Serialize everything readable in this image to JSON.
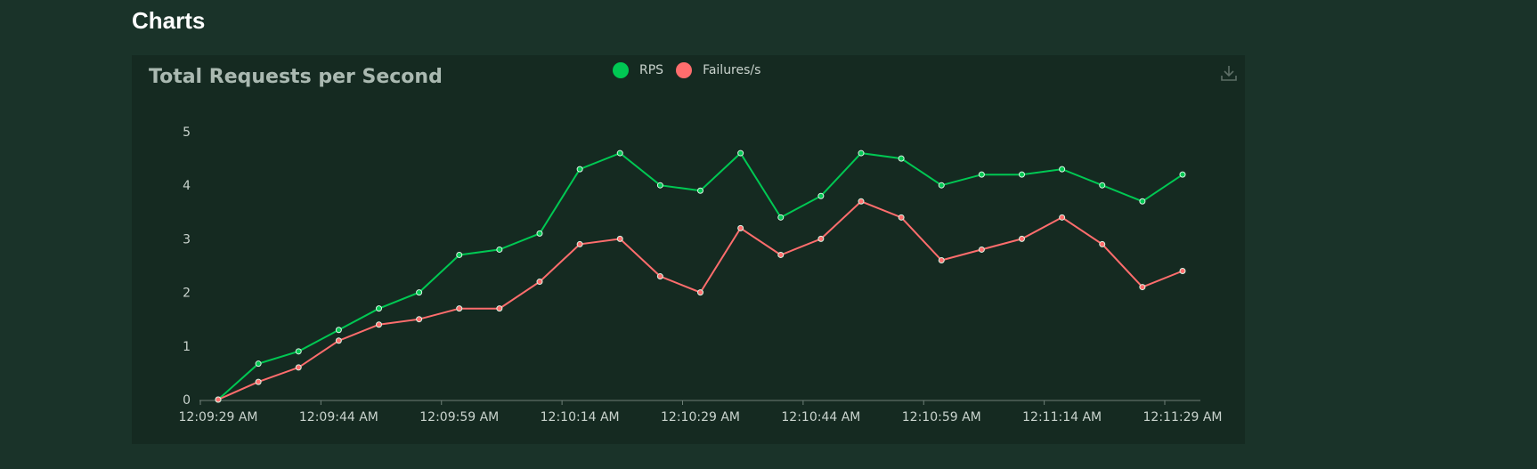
{
  "page": {
    "section_title": "Charts"
  },
  "toolbar": {
    "download_icon": "download-icon"
  },
  "chart_data": {
    "type": "line",
    "title": "Total Requests per Second",
    "xlabel": "",
    "ylabel": "",
    "ylim": [
      0,
      5
    ],
    "yticks": [
      0,
      1,
      2,
      3,
      4,
      5
    ],
    "grid": false,
    "legend_position": "top-center",
    "x_tick_labels": [
      "12:09:29 AM",
      "12:09:44 AM",
      "12:09:59 AM",
      "12:10:14 AM",
      "12:10:29 AM",
      "12:10:44 AM",
      "12:10:59 AM",
      "12:11:14 AM",
      "12:11:29 AM"
    ],
    "x": [
      "12:09:29 AM",
      "12:09:34 AM",
      "12:09:39 AM",
      "12:09:44 AM",
      "12:09:49 AM",
      "12:09:54 AM",
      "12:09:59 AM",
      "12:10:04 AM",
      "12:10:09 AM",
      "12:10:14 AM",
      "12:10:19 AM",
      "12:10:24 AM",
      "12:10:29 AM",
      "12:10:34 AM",
      "12:10:39 AM",
      "12:10:44 AM",
      "12:10:49 AM",
      "12:10:54 AM",
      "12:10:59 AM",
      "12:11:04 AM",
      "12:11:09 AM",
      "12:11:14 AM",
      "12:11:19 AM",
      "12:11:24 AM",
      "12:11:29 AM"
    ],
    "series": [
      {
        "name": "RPS",
        "color": "#00c853",
        "values": [
          0,
          0.67,
          0.9,
          1.3,
          1.7,
          2.0,
          2.7,
          2.8,
          3.1,
          4.3,
          4.6,
          4.0,
          3.9,
          4.6,
          3.4,
          3.8,
          4.6,
          4.5,
          4.0,
          4.2,
          4.2,
          4.3,
          4.0,
          3.7,
          4.2
        ]
      },
      {
        "name": "Failures/s",
        "color": "#ff6d6d",
        "values": [
          0,
          0.33,
          0.6,
          1.1,
          1.4,
          1.5,
          1.7,
          1.7,
          2.2,
          2.9,
          3.0,
          2.3,
          2.0,
          3.2,
          2.7,
          3.0,
          3.7,
          3.4,
          2.6,
          2.8,
          3.0,
          3.4,
          2.9,
          2.1,
          2.4
        ]
      }
    ]
  }
}
